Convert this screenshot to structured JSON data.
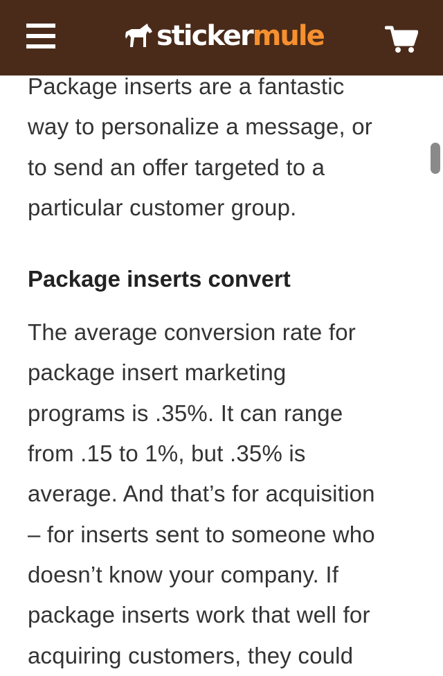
{
  "header": {
    "logo_word1": "sticker",
    "logo_word2": "mule",
    "menu_icon": "hamburger-menu-icon",
    "cart_icon": "shopping-cart-icon",
    "colors": {
      "background": "#4a2b1a",
      "accent": "#f7902f"
    }
  },
  "article": {
    "intro_lines": [
      "Package inserts are a fantastic",
      "way to personalize a message, or",
      "to send an offer targeted to a",
      "particular customer group."
    ],
    "heading": "Package inserts convert",
    "body_lines": [
      "The average conversion rate for",
      "package insert marketing",
      "programs is .35%. It can range",
      "from .15 to 1%, but .35% is",
      "average. And that’s for acquisition",
      "– for inserts sent to someone who",
      "doesn’t know your company. If",
      "package inserts work that well for",
      "acquiring customers, they could"
    ]
  }
}
